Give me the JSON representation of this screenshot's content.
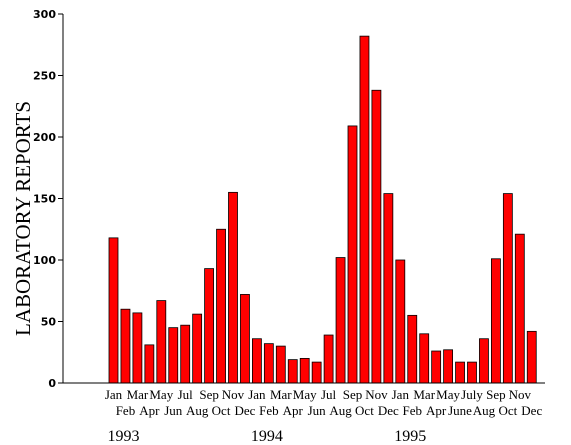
{
  "chart_data": {
    "type": "bar",
    "title": "",
    "xlabel": "",
    "ylabel": "LABORATORY REPORTS",
    "ylim": [
      0,
      300
    ],
    "yticks": [
      0,
      50,
      100,
      150,
      200,
      250,
      300
    ],
    "grid": false,
    "categories": [
      "Jan",
      "Feb",
      "Mar",
      "Apr",
      "May",
      "Jun",
      "Jul",
      "Aug",
      "Sep",
      "Oct",
      "Nov",
      "Dec",
      "Jan",
      "Feb",
      "Mar",
      "Apr",
      "May",
      "Jun",
      "Jul",
      "Aug",
      "Sep",
      "Oct",
      "Nov",
      "Dec",
      "Jan",
      "Feb",
      "Mar",
      "Apr",
      "May",
      "June",
      "July",
      "Aug",
      "Sep",
      "Oct",
      "Nov",
      "Dec"
    ],
    "values": [
      118,
      60,
      57,
      31,
      67,
      45,
      47,
      56,
      93,
      125,
      155,
      72,
      36,
      32,
      30,
      19,
      20,
      17,
      39,
      102,
      209,
      282,
      238,
      154,
      100,
      55,
      40,
      26,
      27,
      17,
      17,
      36,
      101,
      154,
      121,
      42
    ],
    "years": [
      {
        "label": "1993",
        "start_index": 0
      },
      {
        "label": "1994",
        "start_index": 12
      },
      {
        "label": "1995",
        "start_index": 24
      }
    ],
    "bar_color": "#ff0000"
  }
}
